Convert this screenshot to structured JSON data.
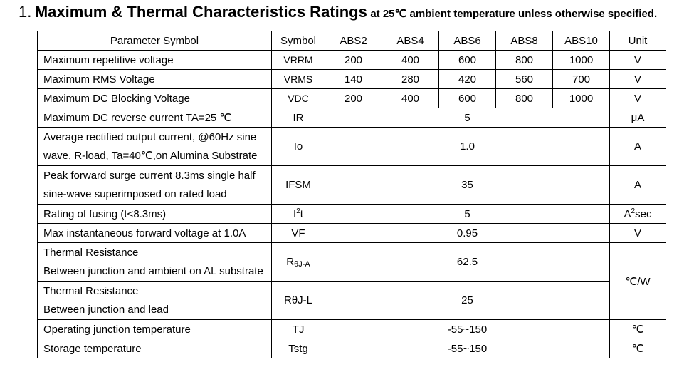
{
  "heading": {
    "number": "1.",
    "title": "Maximum & Thermal Characteristics Ratings",
    "subtitle": "at 25℃ ambient temperature unless otherwise specified."
  },
  "table": {
    "headers": {
      "parameter": "Parameter Symbol",
      "symbol": "Symbol",
      "abs2": "ABS2",
      "abs4": "ABS4",
      "abs6": "ABS6",
      "abs8": "ABS8",
      "abs10": "ABS10",
      "unit": "Unit"
    },
    "vrrm": {
      "param": "Maximum repetitive voltage",
      "symbol": "VRRM",
      "v2": "200",
      "v4": "400",
      "v6": "600",
      "v8": "800",
      "v10": "1000",
      "unit": "V"
    },
    "vrms": {
      "param": "Maximum RMS Voltage",
      "symbol": "VRMS",
      "v2": "140",
      "v4": "280",
      "v6": "420",
      "v8": "560",
      "v10": "700",
      "unit": "V"
    },
    "vdc": {
      "param": "Maximum DC Blocking Voltage",
      "symbol": "VDC",
      "v2": "200",
      "v4": "400",
      "v6": "600",
      "v8": "800",
      "v10": "1000",
      "unit": "V"
    },
    "ir": {
      "param": "Maximum DC reverse current TA=25 ℃",
      "symbol": "IR",
      "value": "5",
      "unit": "μA"
    },
    "io": {
      "param_line1": "Average rectified output current, @60Hz sine",
      "param_line2": "wave, R-load, Ta=40℃,on Alumina Substrate",
      "symbol": "Io",
      "value": "1.0",
      "unit": "A"
    },
    "ifsm": {
      "param_line1": "Peak forward surge current 8.3ms single half",
      "param_line2": "sine-wave superimposed on rated load",
      "symbol": "IFSM",
      "value": "35",
      "unit": "A"
    },
    "i2t": {
      "param": "Rating of fusing (t<8.3ms)",
      "symbol_base": "I",
      "symbol_sup": "2",
      "symbol_tail": "t",
      "value": "5",
      "unit_base": "A",
      "unit_sup": "2",
      "unit_tail": "sec"
    },
    "vf": {
      "param": "Max instantaneous forward voltage at 1.0A",
      "symbol": "VF",
      "value": "0.95",
      "unit": "V"
    },
    "rja": {
      "param_line1": "Thermal Resistance",
      "param_line2": "Between junction and ambient on AL substrate",
      "symbol_base": "R",
      "symbol_sub": "θJ-A",
      "value": "62.5"
    },
    "rjl": {
      "param_line1": "Thermal Resistance",
      "param_line2": "Between junction and lead",
      "symbol": "RθJ-L",
      "value": "25"
    },
    "thermal_unit": "℃/W",
    "tj": {
      "param": "Operating junction temperature",
      "symbol": "TJ",
      "value": "-55~150",
      "unit": "℃"
    },
    "tstg": {
      "param": "Storage temperature",
      "symbol": "Tstg",
      "value": "-55~150",
      "unit": "℃"
    }
  }
}
